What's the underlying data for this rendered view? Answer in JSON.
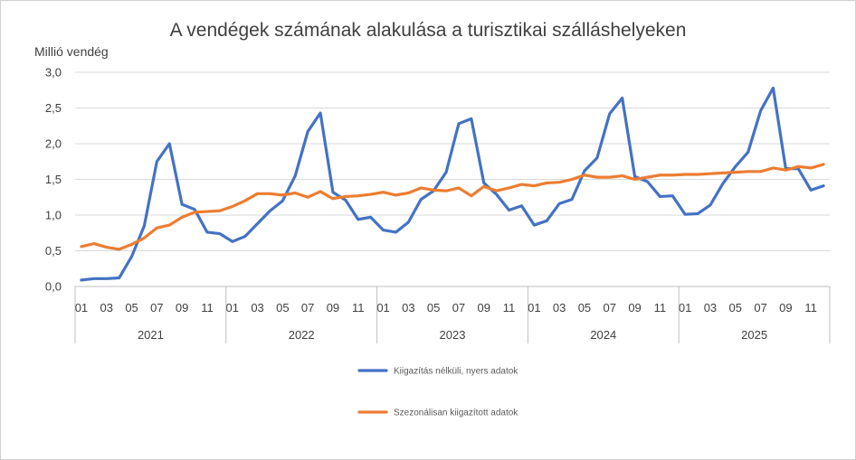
{
  "chart_data": {
    "type": "line",
    "title": "A vendégek számának alakulása a turisztikai szálláshelyeken",
    "ylabel": "Millió vendég",
    "ylim": [
      0,
      3
    ],
    "yticks": [
      "0,0",
      "0,5",
      "1,0",
      "1,5",
      "2,0",
      "2,5",
      "3,0"
    ],
    "grid": true,
    "legend_position": "bottom",
    "month_tick_labels": [
      "01",
      "03",
      "05",
      "07",
      "09",
      "11"
    ],
    "years": [
      "2021",
      "2022",
      "2023",
      "2024",
      "2025"
    ],
    "x_count": 60,
    "series": [
      {
        "name": "Kiigazítás nélküli, nyers adatok",
        "color": "#4472c4",
        "values": [
          0.09,
          0.11,
          0.11,
          0.12,
          0.42,
          0.85,
          1.75,
          2.0,
          1.15,
          1.08,
          0.76,
          0.74,
          0.63,
          0.7,
          0.88,
          1.06,
          1.2,
          1.55,
          2.17,
          2.43,
          1.32,
          1.21,
          0.94,
          0.97,
          0.79,
          0.76,
          0.9,
          1.22,
          1.34,
          1.6,
          2.28,
          2.35,
          1.45,
          1.29,
          1.07,
          1.13,
          0.86,
          0.92,
          1.16,
          1.22,
          1.62,
          1.8,
          2.42,
          2.64,
          1.54,
          1.47,
          1.26,
          1.27,
          1.01,
          1.02,
          1.14,
          1.44,
          1.68,
          1.88,
          2.46,
          2.78,
          1.65,
          1.65,
          1.35,
          1.41
        ]
      },
      {
        "name": "Szezonálisan kiigazított adatok",
        "color": "#ed7d31",
        "values": [
          0.56,
          0.6,
          0.55,
          0.52,
          0.59,
          0.68,
          0.82,
          0.86,
          0.97,
          1.04,
          1.05,
          1.06,
          1.12,
          1.2,
          1.3,
          1.3,
          1.28,
          1.31,
          1.25,
          1.33,
          1.23,
          1.26,
          1.27,
          1.29,
          1.32,
          1.28,
          1.31,
          1.38,
          1.35,
          1.34,
          1.38,
          1.27,
          1.4,
          1.34,
          1.38,
          1.43,
          1.41,
          1.45,
          1.46,
          1.5,
          1.56,
          1.53,
          1.53,
          1.55,
          1.5,
          1.53,
          1.56,
          1.56,
          1.57,
          1.57,
          1.58,
          1.59,
          1.6,
          1.61,
          1.61,
          1.66,
          1.63,
          1.68,
          1.66,
          1.71
        ]
      }
    ]
  }
}
